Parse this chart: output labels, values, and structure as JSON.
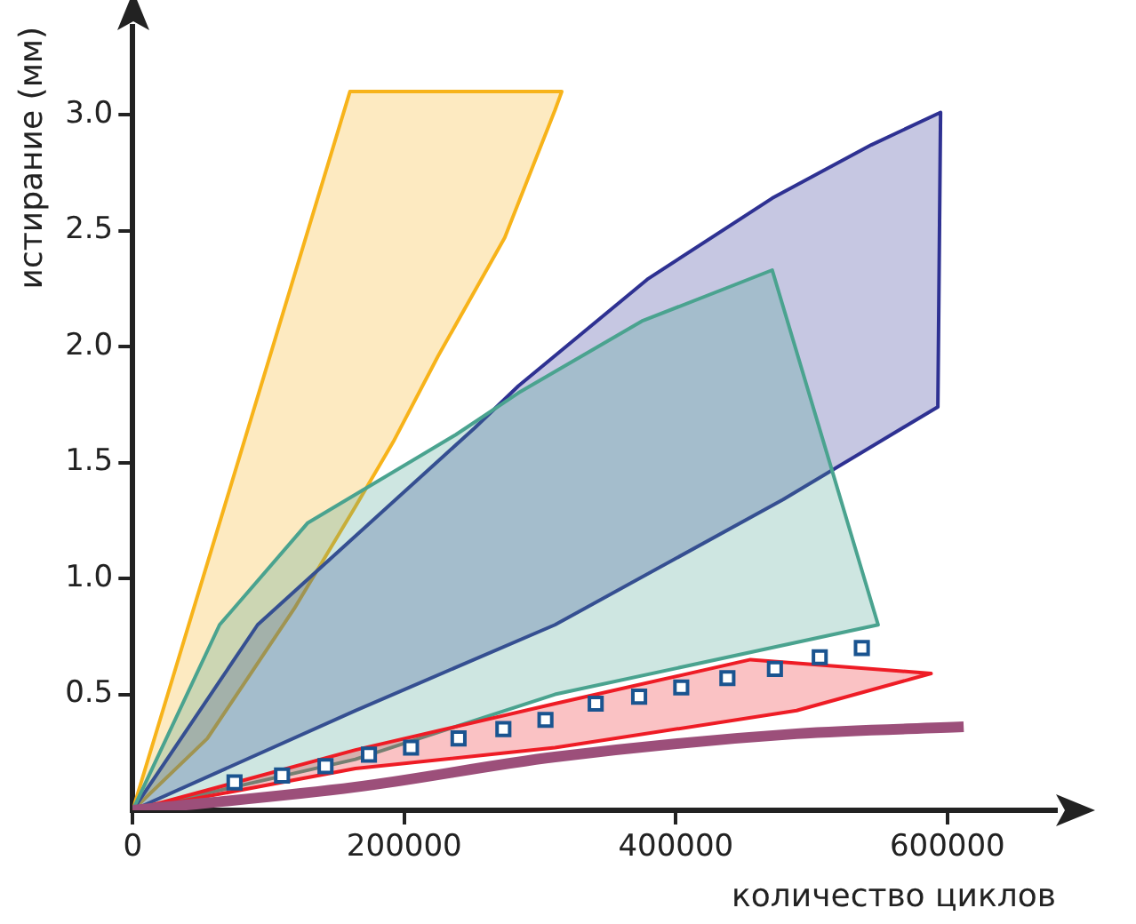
{
  "chart_data": {
    "type": "area",
    "xlabel": "количество циклов",
    "ylabel": "истирание (мм)",
    "xlim": [
      0,
      680000
    ],
    "ylim": [
      0,
      3.38
    ],
    "xticks": [
      0,
      200000,
      400000,
      600000
    ],
    "yticks": [
      {
        "value": 0.5,
        "label": "0.5"
      },
      {
        "value": 1,
        "label": "1.0"
      },
      {
        "value": 1.5,
        "label": "1.5"
      },
      {
        "value": 2,
        "label": "2.0"
      },
      {
        "value": 2.5,
        "label": "2.5"
      },
      {
        "value": 3,
        "label": "3.0"
      }
    ],
    "grid": false,
    "legend": false,
    "series": [
      {
        "color": "#f7b31a",
        "x": [
          0,
          160000,
          316000,
          311000,
          274000,
          225000,
          192000,
          164000,
          119000,
          55000,
          0
        ],
        "values": [
          0,
          3.1,
          3.1,
          3.02,
          2.47,
          1.96,
          1.59,
          1.31,
          0.87,
          0.31,
          0
        ]
      },
      {
        "color": "#2e3192",
        "x": [
          0,
          92000,
          252000,
          284000,
          379000,
          471000,
          544000,
          595000,
          593000,
          479000,
          311000,
          164000,
          0
        ],
        "values": [
          0,
          0.8,
          1.65,
          1.83,
          2.29,
          2.64,
          2.87,
          3.01,
          1.74,
          1.34,
          0.8,
          0.43,
          0
        ]
      },
      {
        "color": "#4aa38f",
        "x": [
          0,
          64000,
          129000,
          238000,
          284000,
          375000,
          471000,
          549000,
          311000,
          164000,
          0
        ],
        "values": [
          0,
          0.8,
          1.24,
          1.62,
          1.8,
          2.11,
          2.33,
          0.8,
          0.5,
          0.22,
          0
        ]
      },
      {
        "color": "#ee1c25",
        "x": [
          0,
          164000,
          311000,
          455000,
          588000,
          489000,
          311000,
          164000,
          0
        ],
        "values": [
          0,
          0.26,
          0.46,
          0.65,
          0.59,
          0.43,
          0.27,
          0.18,
          0
        ]
      },
      {
        "type": "line",
        "color": "#9c4f7a",
        "x": [
          0,
          164000,
          311000,
          489000,
          612000
        ],
        "values": [
          0,
          0.1,
          0.23,
          0.33,
          0.36
        ]
      },
      {
        "type": "scatter",
        "color": "#1a5490",
        "marker": "square",
        "x": [
          75000,
          110000,
          142000,
          174000,
          205000,
          240000,
          273000,
          304000,
          341000,
          373000,
          404000,
          438000,
          473000,
          506000,
          537000
        ],
        "values": [
          0.12,
          0.15,
          0.19,
          0.24,
          0.27,
          0.31,
          0.35,
          0.39,
          0.46,
          0.49,
          0.53,
          0.57,
          0.61,
          0.66,
          0.7
        ]
      }
    ]
  }
}
